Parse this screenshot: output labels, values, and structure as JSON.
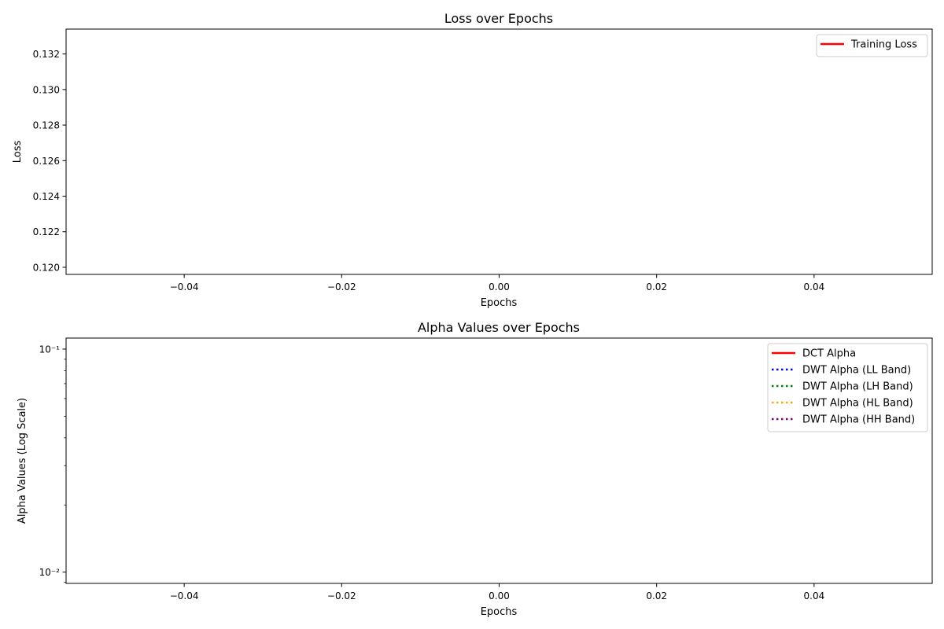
{
  "chart_data": [
    {
      "type": "line",
      "title": "Loss over Epochs",
      "xlabel": "Epochs",
      "ylabel": "Loss",
      "xlim": [
        -0.055,
        0.055
      ],
      "ylim": [
        0.1196,
        0.1334
      ],
      "xticks": [
        -0.04,
        -0.02,
        0.0,
        0.02,
        0.04
      ],
      "xtick_labels": [
        "−0.04",
        "−0.02",
        "0.00",
        "0.02",
        "0.04"
      ],
      "yticks": [
        0.12,
        0.122,
        0.124,
        0.126,
        0.128,
        0.13,
        0.132
      ],
      "ytick_labels": [
        "0.120",
        "0.122",
        "0.124",
        "0.126",
        "0.128",
        "0.130",
        "0.132"
      ],
      "yscale": "linear",
      "grid": false,
      "legend_position": "top-right",
      "series": [
        {
          "name": "Training Loss",
          "color": "#ff0000",
          "style": "solid",
          "x": [],
          "y": []
        }
      ]
    },
    {
      "type": "line",
      "title": "Alpha Values over Epochs",
      "xlabel": "Epochs",
      "ylabel": "Alpha Values (Log Scale)",
      "xlim": [
        -0.055,
        0.055
      ],
      "ylim": [
        0.0089,
        0.112
      ],
      "xticks": [
        -0.04,
        -0.02,
        0.0,
        0.02,
        0.04
      ],
      "xtick_labels": [
        "−0.04",
        "−0.02",
        "0.00",
        "0.02",
        "0.04"
      ],
      "yticks": [
        0.01,
        0.1
      ],
      "ytick_labels": [
        "10⁻²",
        "10⁻¹"
      ],
      "yscale": "log",
      "grid": false,
      "legend_position": "top-right",
      "series": [
        {
          "name": "DCT Alpha",
          "color": "#ff0000",
          "style": "solid",
          "x": [],
          "y": []
        },
        {
          "name": "DWT Alpha (LL Band)",
          "color": "#0000ff",
          "style": "dotted",
          "x": [],
          "y": []
        },
        {
          "name": "DWT Alpha (LH Band)",
          "color": "#008000",
          "style": "dotted",
          "x": [],
          "y": []
        },
        {
          "name": "DWT Alpha (HL Band)",
          "color": "#ffa500",
          "style": "dotted",
          "x": [],
          "y": []
        },
        {
          "name": "DWT Alpha (HH Band)",
          "color": "#800080",
          "style": "dotted",
          "x": [],
          "y": []
        }
      ]
    }
  ]
}
